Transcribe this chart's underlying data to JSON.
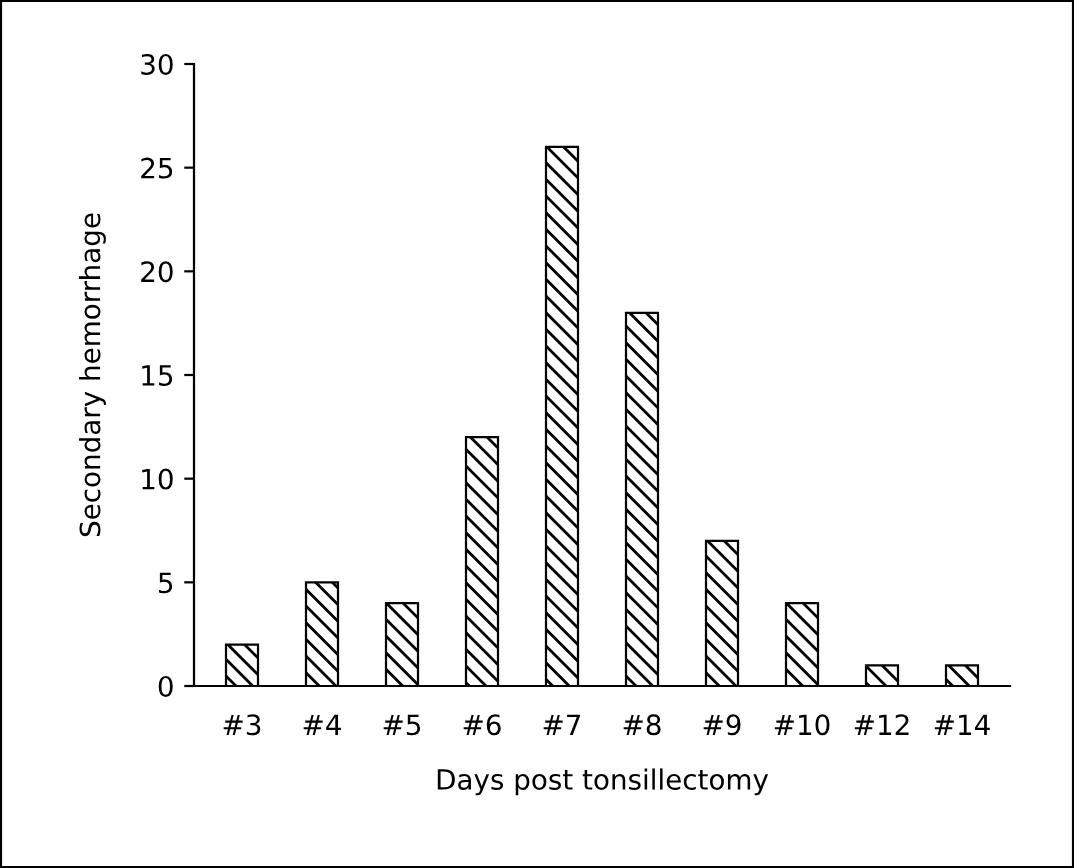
{
  "chart_data": {
    "type": "bar",
    "xlabel": "Days post tonsillectomy",
    "ylabel": "Secondary hemorrhage",
    "categories": [
      "#3",
      "#4",
      "#5",
      "#6",
      "#7",
      "#8",
      "#9",
      "#10",
      "#12",
      "#14"
    ],
    "values": [
      2,
      5,
      4,
      12,
      26,
      18,
      7,
      4,
      1,
      1
    ],
    "color": "#000000",
    "ylim": [
      0,
      30
    ],
    "yticks": [
      0,
      5,
      10,
      15,
      20,
      25,
      30
    ],
    "grid": false
  }
}
